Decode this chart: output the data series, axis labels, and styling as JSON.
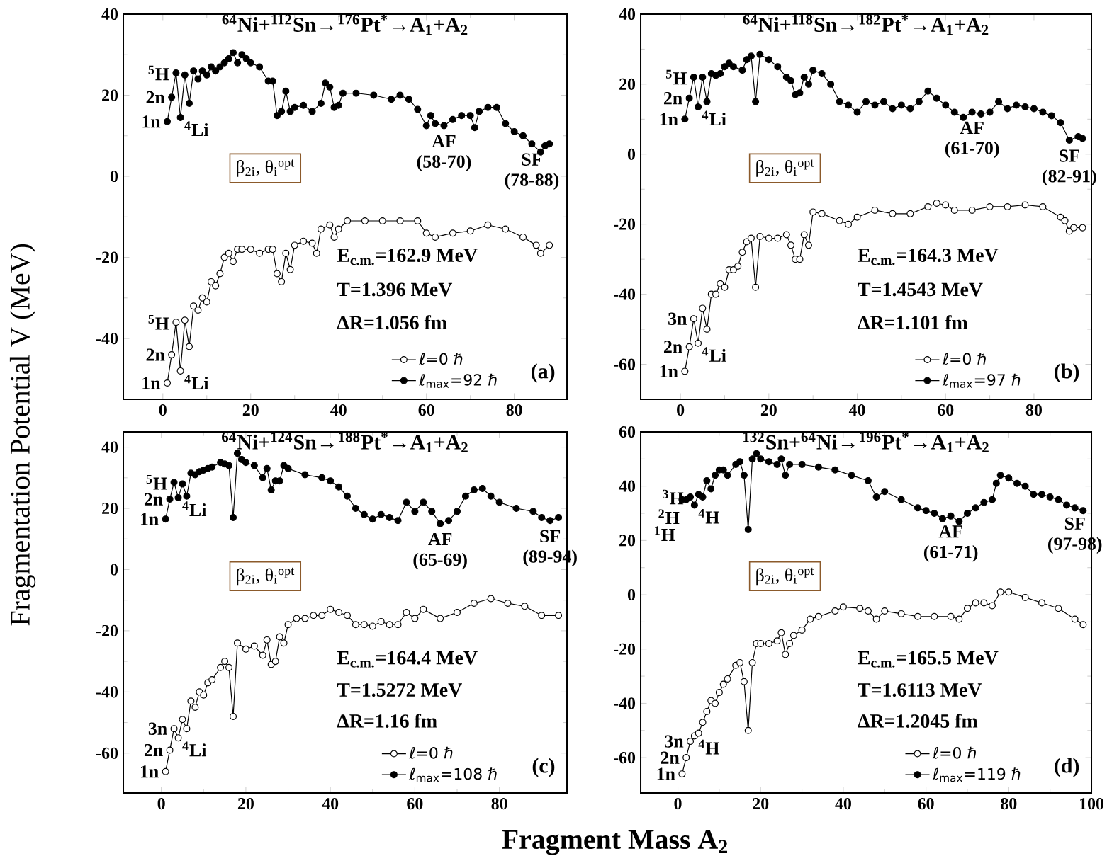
{
  "chart_data": [
    {
      "type": "line",
      "title": "$^{64}$Ni+$^{112}$Sn→$^{176}$Pt$^{*}$→A$_{1}$+A$_{2}$",
      "ylabel": "Fragmentation Potential V (MeV)",
      "xlim": [
        -9,
        92
      ],
      "ylim": [
        -55,
        40
      ],
      "xticks": [
        0,
        20,
        40,
        60,
        80
      ],
      "yticks": [
        -40,
        -20,
        0,
        20,
        40
      ],
      "marker": "circle",
      "line_style": "solid",
      "legend": "bottom right",
      "series": [
        {
          "name": "ℓ=0 ℏ",
          "color": "#000000",
          "x": [
            1,
            2,
            3,
            4,
            5,
            6,
            7,
            8,
            9,
            10,
            11,
            12,
            13,
            14,
            15,
            16,
            17,
            18,
            20,
            22,
            24,
            25,
            26,
            27,
            28,
            29,
            30,
            32,
            34,
            35,
            36,
            38,
            39,
            40,
            42,
            46,
            50,
            54,
            58,
            60,
            62,
            66,
            70,
            74,
            78,
            82,
            85,
            86,
            88
          ],
          "values": [
            -51,
            -44,
            -36,
            -48,
            -35.5,
            -42,
            -32,
            -33,
            -30,
            -31,
            -26,
            -27,
            -24,
            -20,
            -19,
            -21,
            -18,
            -18,
            -18,
            -19,
            -18,
            -18,
            -24,
            -26,
            -19,
            -23,
            -17,
            -16,
            -16.5,
            -19,
            -13,
            -12,
            -15,
            -13,
            -11,
            -11,
            -11,
            -11,
            -11,
            -14,
            -15,
            -14,
            -13.5,
            -12,
            -13,
            -15,
            -17,
            -19,
            -17
          ]
        },
        {
          "name": "ℓ$_{max}$=92 ℏ",
          "color": "#000000",
          "x": [
            1,
            2,
            3,
            4,
            5,
            6,
            7,
            8,
            9,
            10,
            11,
            12,
            13,
            14,
            15,
            16,
            17,
            18,
            19,
            20,
            22,
            24,
            25,
            26,
            27,
            28,
            29,
            30,
            32,
            34,
            36,
            37,
            38,
            39,
            40,
            41,
            44,
            48,
            52,
            54,
            56,
            58,
            60,
            61,
            62,
            64,
            66,
            68,
            70,
            71,
            72,
            74,
            76,
            78,
            80,
            82,
            84,
            86,
            87,
            88
          ],
          "values": [
            13.5,
            19.5,
            25.5,
            14.5,
            25,
            18,
            26,
            24,
            26,
            25,
            27,
            26,
            27,
            28,
            29,
            30.5,
            28,
            30,
            29,
            28,
            27,
            23.5,
            23.5,
            15,
            16,
            21,
            16,
            17,
            17.5,
            16,
            18,
            23,
            22,
            17,
            17.5,
            20.5,
            20.5,
            20,
            19,
            20,
            19,
            16.5,
            12.5,
            15,
            13,
            12.5,
            14,
            15,
            15,
            12,
            16,
            17,
            17,
            13,
            11,
            10,
            8,
            6,
            7.5,
            8
          ]
        }
      ],
      "annotations": [
        "β$_{2i}$, θ$_{i}$$^{opt}$",
        "E$_{c.m.}$=162.9 MeV",
        "T=1.396 MeV",
        "ΔR=1.056 fm",
        "(a)",
        {
          "text": "$^{5}$H",
          "x": 3,
          "y": 25.5
        },
        {
          "text": "2n",
          "x": 2,
          "y": 19.5
        },
        {
          "text": "1n",
          "x": 1,
          "y": 13.5
        },
        {
          "text": "$^{4}$Li",
          "x": 4,
          "y": 14.5
        },
        {
          "text": "AF",
          "x": 64,
          "y": 12.5
        },
        {
          "text": "(58-70)",
          "x": 64,
          "y": 12.5
        },
        {
          "text": "SF",
          "x": 84,
          "y": 8
        },
        {
          "text": "(78-88)",
          "x": 84,
          "y": 8
        },
        {
          "text": "$^{5}$H",
          "x": 3,
          "y": -36
        },
        {
          "text": "2n",
          "x": 2,
          "y": -44
        },
        {
          "text": "1n",
          "x": 1,
          "y": -51
        },
        {
          "text": "$^{4}$Li",
          "x": 4,
          "y": -48
        }
      ]
    },
    {
      "type": "line",
      "title": "$^{64}$Ni+$^{118}$Sn→$^{182}$Pt$^{*}$→A$_{1}$+A$_{2}$",
      "xlim": [
        -9,
        93
      ],
      "ylim": [
        -70,
        40
      ],
      "xticks": [
        0,
        20,
        40,
        60,
        80
      ],
      "yticks": [
        -60,
        -40,
        -20,
        0,
        20,
        40
      ],
      "marker": "circle",
      "line_style": "solid",
      "legend": "bottom right",
      "series": [
        {
          "name": "ℓ=0 ℏ",
          "color": "#000000",
          "x": [
            1,
            2,
            3,
            4,
            5,
            6,
            7,
            8,
            9,
            10,
            11,
            12,
            13,
            14,
            15,
            16,
            17,
            18,
            20,
            22,
            24,
            25,
            26,
            27,
            28,
            29,
            30,
            32,
            36,
            38,
            40,
            44,
            48,
            52,
            56,
            58,
            60,
            62,
            66,
            70,
            74,
            78,
            82,
            86,
            87,
            88,
            89,
            91
          ],
          "values": [
            -62,
            -55,
            -47,
            -54,
            -44,
            -50,
            -40,
            -40,
            -37,
            -38,
            -33,
            -33,
            -32,
            -28,
            -25,
            -24,
            -38,
            -23.5,
            -24,
            -24,
            -23,
            -26,
            -30,
            -30,
            -23,
            -26,
            -16.5,
            -17,
            -19,
            -20,
            -18,
            -16,
            -17,
            -17,
            -15,
            -14,
            -14.5,
            -16,
            -16,
            -15,
            -15,
            -14.5,
            -15,
            -18,
            -19,
            -22,
            -21,
            -21
          ]
        },
        {
          "name": "ℓ$_{max}$=97 ℏ",
          "color": "#000000",
          "x": [
            1,
            2,
            3,
            4,
            5,
            6,
            7,
            8,
            9,
            10,
            11,
            12,
            14,
            15,
            16,
            17,
            18,
            20,
            22,
            24,
            25,
            26,
            27,
            28,
            29,
            30,
            32,
            34,
            36,
            38,
            40,
            42,
            44,
            46,
            48,
            50,
            52,
            54,
            56,
            58,
            60,
            62,
            64,
            66,
            68,
            70,
            72,
            74,
            76,
            78,
            80,
            82,
            84,
            86,
            88,
            90,
            91
          ],
          "values": [
            10,
            16,
            22,
            13.5,
            22,
            15,
            23,
            22.5,
            23,
            25,
            26,
            25,
            24,
            27,
            28,
            15,
            28.5,
            27,
            25,
            22,
            21,
            17,
            17.5,
            22,
            20,
            24,
            23,
            20,
            15,
            14,
            12,
            15,
            14,
            15,
            13,
            14,
            13,
            15,
            18,
            16,
            14,
            12,
            10.5,
            12,
            11.5,
            12,
            15,
            13,
            14,
            13.5,
            13,
            12,
            11,
            9,
            4,
            5,
            4.5
          ]
        }
      ],
      "annotations": [
        "β$_{2i}$, θ$_{i}$$^{opt}$",
        "E$_{c.m.}$=164.3 MeV",
        "T=1.4543 MeV",
        "ΔR=1.101 fm",
        "(b)",
        {
          "text": "$^{5}$H",
          "x": 3,
          "y": 22
        },
        {
          "text": "2n",
          "x": 2,
          "y": 16
        },
        {
          "text": "1n",
          "x": 1,
          "y": 10
        },
        {
          "text": "$^{4}$Li",
          "x": 4,
          "y": 13.5
        },
        {
          "text": "AF",
          "x": 66,
          "y": 12
        },
        {
          "text": "(61-70)",
          "x": 66,
          "y": 12
        },
        {
          "text": "SF",
          "x": 88,
          "y": 4
        },
        {
          "text": "(82-91)",
          "x": 88,
          "y": 4
        },
        {
          "text": "3n",
          "x": 3,
          "y": -47
        },
        {
          "text": "2n",
          "x": 2,
          "y": -55
        },
        {
          "text": "1n",
          "x": 1,
          "y": -62
        },
        {
          "text": "$^{4}$Li",
          "x": 4,
          "y": -54
        }
      ]
    },
    {
      "type": "line",
      "title": "$^{64}$Ni+$^{124}$Sn→$^{188}$Pt$^{*}$→A$_{1}$+A$_{2}$",
      "xlabel": "Fragment Mass A$_{2}$",
      "xlim": [
        -9,
        96
      ],
      "ylim": [
        -73,
        45
      ],
      "xticks": [
        0,
        20,
        40,
        60,
        80
      ],
      "yticks": [
        -60,
        -40,
        -20,
        0,
        20,
        40
      ],
      "marker": "circle",
      "line_style": "solid",
      "legend": "bottom right",
      "series": [
        {
          "name": "ℓ=0 ℏ",
          "color": "#000000",
          "x": [
            1,
            2,
            3,
            4,
            5,
            6,
            7,
            8,
            9,
            10,
            11,
            12,
            14,
            15,
            16,
            17,
            18,
            20,
            22,
            24,
            25,
            26,
            27,
            28,
            29,
            30,
            32,
            34,
            36,
            38,
            40,
            42,
            44,
            46,
            48,
            50,
            52,
            54,
            56,
            58,
            60,
            62,
            66,
            70,
            74,
            78,
            82,
            86,
            90,
            94
          ],
          "values": [
            -66,
            -59,
            -52,
            -55,
            -49,
            -52,
            -43,
            -45,
            -40,
            -41,
            -37,
            -36,
            -32,
            -30,
            -32,
            -48,
            -24,
            -26,
            -25,
            -28,
            -23,
            -31,
            -30,
            -22,
            -24,
            -18,
            -16,
            -16,
            -15,
            -15,
            -13,
            -14,
            -15,
            -18,
            -18,
            -18.5,
            -17,
            -18,
            -18,
            -14,
            -16,
            -13,
            -16,
            -14,
            -11,
            -9.5,
            -11,
            -12,
            -15,
            -15
          ]
        },
        {
          "name": "ℓ$_{max}$=108 ℏ",
          "color": "#000000",
          "x": [
            1,
            2,
            3,
            4,
            5,
            6,
            7,
            8,
            9,
            10,
            11,
            12,
            14,
            15,
            16,
            17,
            18,
            19,
            20,
            22,
            24,
            25,
            26,
            27,
            28,
            29,
            30,
            34,
            38,
            40,
            42,
            44,
            46,
            48,
            50,
            52,
            54,
            56,
            58,
            60,
            62,
            64,
            66,
            68,
            70,
            72,
            74,
            76,
            78,
            80,
            84,
            88,
            90,
            92,
            94
          ],
          "values": [
            16.5,
            23,
            28.5,
            23.5,
            28,
            24,
            31.5,
            31,
            32,
            32.5,
            33,
            33.5,
            35,
            34.5,
            34,
            17,
            38,
            36,
            35,
            34,
            30,
            33,
            26,
            29,
            29,
            34,
            33,
            31,
            30,
            29,
            27,
            24,
            20,
            18,
            16.5,
            18,
            17,
            16,
            22,
            19,
            22,
            19,
            15,
            16,
            19,
            24,
            26,
            26.5,
            24,
            22,
            20,
            19,
            17,
            16,
            17
          ]
        }
      ],
      "annotations": [
        "β$_{2i}$, θ$_{i}$$^{opt}$",
        "E$_{c.m.}$=164.4 MeV",
        "T=1.5272 MeV",
        "ΔR=1.16 fm",
        "(c)",
        {
          "text": "$^{5}$H",
          "x": 3,
          "y": 28.5
        },
        {
          "text": "2n",
          "x": 2,
          "y": 23
        },
        {
          "text": "1n",
          "x": 1,
          "y": 16.5
        },
        {
          "text": "$^{4}$Li",
          "x": 4,
          "y": 23.5
        },
        {
          "text": "AF",
          "x": 66,
          "y": 15
        },
        {
          "text": "(65-69)",
          "x": 66,
          "y": 15
        },
        {
          "text": "SF",
          "x": 92,
          "y": 16
        },
        {
          "text": "(89-94)",
          "x": 92,
          "y": 16
        },
        {
          "text": "3n",
          "x": 3,
          "y": -52
        },
        {
          "text": "2n",
          "x": 2,
          "y": -59
        },
        {
          "text": "1n",
          "x": 1,
          "y": -66
        },
        {
          "text": "$^{4}$Li",
          "x": 4,
          "y": -55
        }
      ]
    },
    {
      "type": "line",
      "title": "$^{132}$Sn+$^{64}$Ni→$^{196}$Pt$^{*}$→A$_{1}$+A$_{2}$",
      "xlim": [
        -9,
        100
      ],
      "ylim": [
        -73,
        60
      ],
      "xticks": [
        0,
        20,
        40,
        60,
        80,
        100
      ],
      "yticks": [
        -60,
        -40,
        -20,
        0,
        20,
        40,
        60
      ],
      "marker": "circle",
      "line_style": "solid",
      "legend": "bottom right",
      "series": [
        {
          "name": "ℓ=0 ℏ",
          "color": "#000000",
          "x": [
            1,
            2,
            3,
            4,
            5,
            6,
            7,
            8,
            9,
            10,
            11,
            12,
            14,
            15,
            16,
            17,
            18,
            19,
            20,
            22,
            24,
            25,
            26,
            27,
            28,
            30,
            32,
            34,
            38,
            40,
            44,
            46,
            48,
            50,
            54,
            58,
            62,
            66,
            68,
            70,
            72,
            74,
            76,
            78,
            80,
            84,
            88,
            92,
            96,
            98
          ],
          "values": [
            -66,
            -60,
            -54,
            -52,
            -51,
            -47,
            -43,
            -39,
            -40,
            -36,
            -33,
            -31,
            -26,
            -25,
            -32,
            -50,
            -25,
            -18,
            -18,
            -18,
            -17,
            -14,
            -22,
            -18,
            -15,
            -13,
            -9,
            -8,
            -6,
            -4.5,
            -5,
            -6,
            -9,
            -6,
            -7,
            -8,
            -8,
            -8,
            -9,
            -5,
            -3,
            -3,
            -4,
            1,
            1,
            -1,
            -3,
            -5,
            -9,
            -11
          ]
        },
        {
          "name": "ℓ$_{max}$=119 ℏ",
          "color": "#000000",
          "x": [
            1,
            2,
            3,
            4,
            5,
            6,
            7,
            8,
            9,
            10,
            11,
            12,
            14,
            15,
            16,
            17,
            18,
            19,
            20,
            22,
            24,
            25,
            26,
            27,
            30,
            34,
            38,
            42,
            46,
            48,
            50,
            54,
            58,
            60,
            62,
            64,
            66,
            68,
            70,
            72,
            74,
            76,
            77,
            78,
            80,
            82,
            84,
            86,
            88,
            90,
            92,
            94,
            96,
            98
          ],
          "values": [
            35,
            35,
            36,
            33,
            37,
            36,
            42,
            39,
            44,
            46,
            46,
            44,
            48,
            49,
            44,
            24,
            50,
            52,
            50,
            49,
            48,
            50,
            44,
            48,
            48,
            47,
            46,
            44,
            42,
            36,
            38,
            35,
            32,
            31,
            30,
            28,
            29,
            27,
            30,
            32,
            34,
            35,
            41,
            44,
            43,
            41,
            40,
            37,
            37,
            36,
            35,
            33,
            32,
            31
          ]
        }
      ],
      "annotations": [
        "β$_{2i}$, θ$_{i}$$^{opt}$",
        "E$_{c.m.}$=165.5 MeV",
        "T=1.6113 MeV",
        "ΔR=1.2045 fm",
        "(d)",
        {
          "text": "$^{3}$H",
          "x": 3,
          "y": 36
        },
        {
          "text": "$^{2}$H",
          "x": 2,
          "y": 35
        },
        {
          "text": "$^{1}$H",
          "x": 1,
          "y": 35
        },
        {
          "text": "$^{4}$H",
          "x": 4,
          "y": 33
        },
        {
          "text": "AF",
          "x": 66,
          "y": 29
        },
        {
          "text": "(61-71)",
          "x": 66,
          "y": 29
        },
        {
          "text": "SF",
          "x": 96,
          "y": 32
        },
        {
          "text": "(97-98)",
          "x": 96,
          "y": 32
        },
        {
          "text": "3n",
          "x": 3,
          "y": -54
        },
        {
          "text": "2n",
          "x": 2,
          "y": -60
        },
        {
          "text": "1n",
          "x": 1,
          "y": -66
        },
        {
          "text": "$^{4}$H",
          "x": 4,
          "y": -52
        }
      ]
    }
  ]
}
